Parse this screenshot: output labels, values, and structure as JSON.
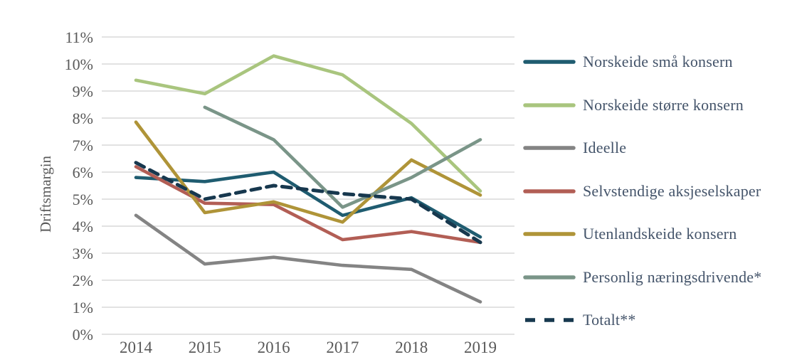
{
  "chart_data": {
    "type": "line",
    "title": "",
    "xlabel": "",
    "ylabel": "Driftsmargin",
    "categories": [
      "2014",
      "2015",
      "2016",
      "2017",
      "2018",
      "2019"
    ],
    "y_ticks": [
      "0%",
      "1%",
      "2%",
      "3%",
      "4%",
      "5%",
      "6%",
      "7%",
      "8%",
      "9%",
      "10%",
      "11%"
    ],
    "ylim": [
      0,
      11
    ],
    "y_unit": "%",
    "grid": true,
    "legend_position": "right",
    "series": [
      {
        "name": "Norskeide små konsern",
        "color": "#1F5C70",
        "style": "solid",
        "values": [
          5.8,
          5.65,
          6.0,
          4.4,
          5.05,
          3.6
        ]
      },
      {
        "name": "Norskeide større konsern",
        "color": "#A9C57E",
        "style": "solid",
        "values": [
          9.4,
          8.9,
          10.3,
          9.6,
          7.8,
          5.3
        ]
      },
      {
        "name": "Ideelle",
        "color": "#848484",
        "style": "solid",
        "values": [
          4.4,
          2.6,
          2.85,
          2.55,
          2.4,
          1.2
        ]
      },
      {
        "name": "Selvstendige aksjeselskaper",
        "color": "#B25E55",
        "style": "solid",
        "values": [
          6.2,
          4.85,
          4.8,
          3.5,
          3.8,
          3.4
        ]
      },
      {
        "name": "Utenlandskeide konsern",
        "color": "#AF9438",
        "style": "solid",
        "values": [
          7.85,
          4.5,
          4.9,
          4.15,
          6.45,
          5.15
        ]
      },
      {
        "name": "Personlig næringsdrivende*",
        "color": "#7A9588",
        "style": "solid",
        "values": [
          null,
          8.4,
          7.2,
          4.7,
          5.8,
          7.2
        ]
      },
      {
        "name": "Totalt**",
        "color": "#17384E",
        "style": "dashed",
        "values": [
          6.35,
          5.0,
          5.5,
          5.2,
          5.0,
          3.4
        ]
      }
    ]
  },
  "colors": {
    "background": "#FFFFFF",
    "gridline": "#D9D9D9",
    "axis_text": "#595959",
    "legend_text": "#44546A"
  }
}
